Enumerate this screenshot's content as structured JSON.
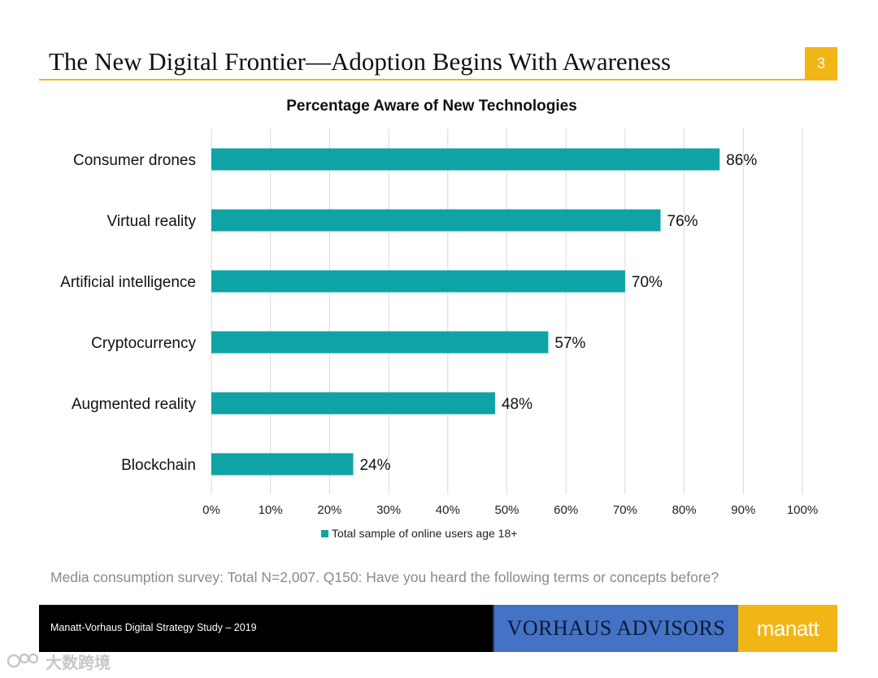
{
  "slide": {
    "title": "The New Digital Frontier—Adoption Begins With Awareness",
    "page_number": "3",
    "caption": "Media consumption survey: Total N=2,007. Q150: Have you heard the following terms or concepts before?"
  },
  "footer": {
    "study": "Manatt-Vorhaus Digital Strategy Study – 2019",
    "vorhaus": "VORHAUS ADVISORS",
    "manatt": "manatt"
  },
  "watermark": {
    "text": "大数跨境"
  },
  "colors": {
    "bar": "#0fa3a6",
    "accent": "#f2b516",
    "footer_blue": "#4472c4",
    "gridline": "#d9d9d9"
  },
  "chart_data": {
    "type": "bar",
    "orientation": "horizontal",
    "title": "Percentage Aware of New Technologies",
    "categories": [
      "Consumer drones",
      "Virtual reality",
      "Artificial intelligence",
      "Cryptocurrency",
      "Augmented reality",
      "Blockchain"
    ],
    "series": [
      {
        "name": "Total sample of online users age 18+",
        "values": [
          86,
          76,
          70,
          57,
          48,
          24
        ]
      }
    ],
    "value_labels": [
      "86%",
      "76%",
      "70%",
      "57%",
      "48%",
      "24%"
    ],
    "xlim": [
      0,
      100
    ],
    "xticks": [
      "0%",
      "10%",
      "20%",
      "30%",
      "40%",
      "50%",
      "60%",
      "70%",
      "80%",
      "90%",
      "100%"
    ],
    "grid": true,
    "legend_position": "bottom"
  }
}
